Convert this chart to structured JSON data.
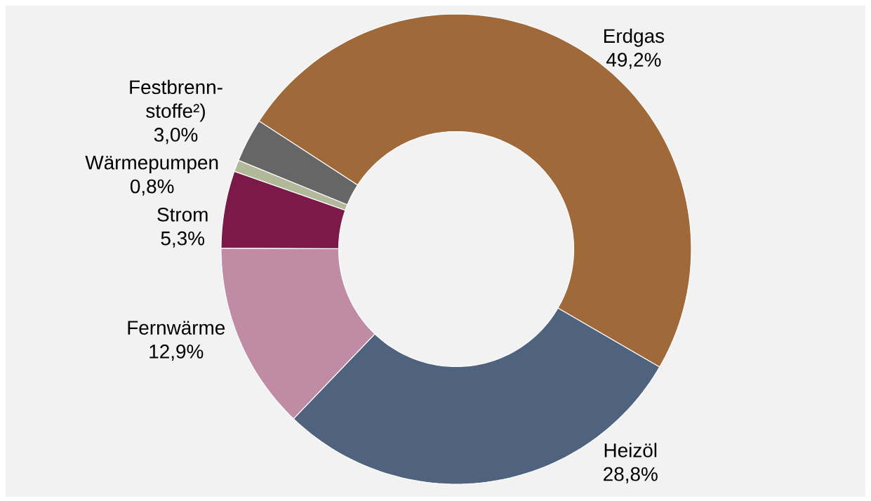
{
  "chart_data": {
    "type": "donut",
    "categories": [
      "Erdgas",
      "Heizöl",
      "Fernwärme",
      "Strom",
      "Wärmepumpen",
      "Festbrenn-stoffe²)"
    ],
    "values": [
      49.2,
      28.8,
      12.9,
      5.3,
      0.8,
      3.0
    ],
    "colors": [
      "#a0693a",
      "#4f637f",
      "#bf8ba5",
      "#7b1a48",
      "#b2b89a",
      "#666666"
    ],
    "value_labels": [
      "49,2%",
      "28,8%",
      "12,9%",
      "5,3%",
      "0,8%",
      "3,0%"
    ]
  }
}
